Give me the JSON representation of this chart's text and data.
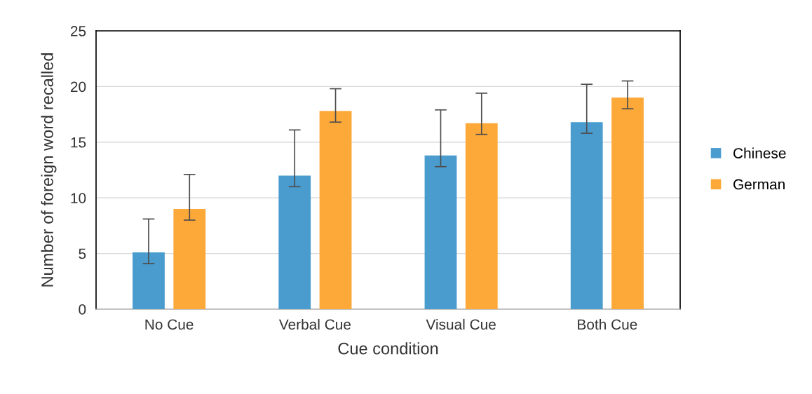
{
  "chart_data": {
    "type": "bar",
    "xlabel": "Cue condition",
    "ylabel": "Number of foreign word recalled",
    "categories": [
      "No Cue",
      "Verbal Cue",
      "Visual Cue",
      "Both Cue"
    ],
    "series": [
      {
        "name": "Chinese",
        "color": "#4a9ccf",
        "values": [
          5.1,
          12.0,
          13.8,
          16.8
        ],
        "errors": [
          [
            4.1,
            8.1
          ],
          [
            11.0,
            16.1
          ],
          [
            12.8,
            17.9
          ],
          [
            15.8,
            20.2
          ]
        ]
      },
      {
        "name": "German",
        "color": "#fda93a",
        "values": [
          9.0,
          17.8,
          16.7,
          19.0
        ],
        "errors": [
          [
            8.0,
            12.1
          ],
          [
            16.8,
            19.8
          ],
          [
            15.7,
            19.4
          ],
          [
            18.0,
            20.5
          ]
        ]
      }
    ],
    "ylim": [
      0,
      25
    ],
    "yticks": [
      0,
      5,
      10,
      15,
      20,
      25
    ],
    "grid": "y",
    "legend": "right"
  }
}
